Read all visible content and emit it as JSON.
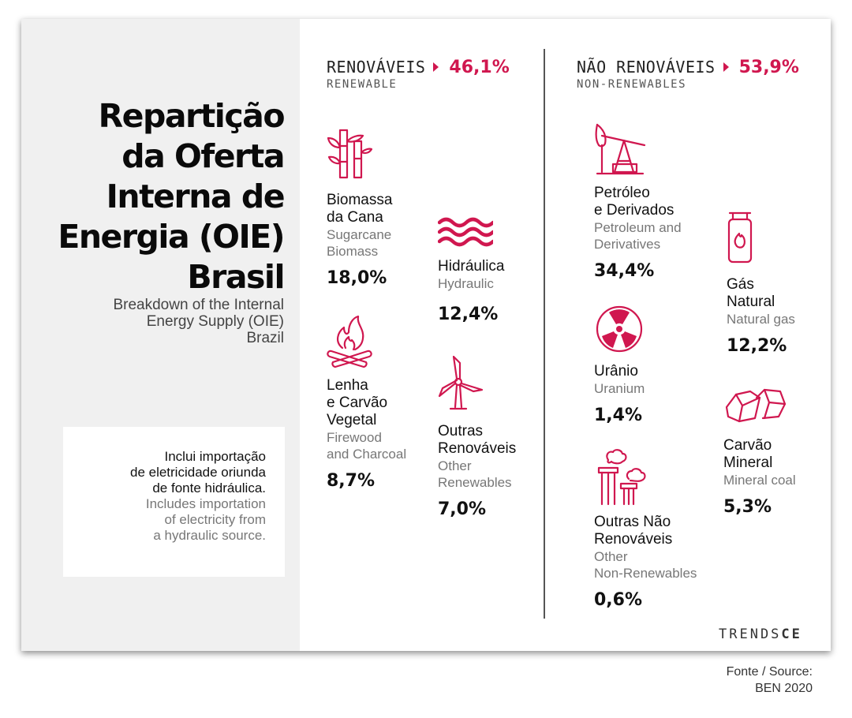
{
  "title": {
    "lines": [
      "Repartição",
      "da Oferta",
      "Interna de",
      "Energia (OIE)",
      "Brasil"
    ],
    "subtitle_lines": [
      "Breakdown of the Internal",
      "Energy Supply (OIE)",
      "Brazil"
    ]
  },
  "note": {
    "pt_lines": [
      "Inclui importação",
      "de eletricidade oriunda",
      "de fonte hidráulica."
    ],
    "en_lines": [
      "Includes importation",
      "of electricity from",
      "a hydraulic source."
    ]
  },
  "renewable": {
    "label_pt": "RENOVÁVEIS",
    "label_en": "RENEWABLE",
    "percent": "46,1%",
    "items": [
      {
        "icon": "sugarcane-icon",
        "pt": "Biomassa\nda Cana",
        "en": "Sugarcane\nBiomass",
        "value": "18,0%"
      },
      {
        "icon": "water-waves-icon",
        "pt": "Hidráulica",
        "en": "Hydraulic",
        "value": "12,4%"
      },
      {
        "icon": "campfire-icon",
        "pt": "Lenha\ne Carvão\nVegetal",
        "en": "Firewood\nand Charcoal",
        "value": "8,7%"
      },
      {
        "icon": "wind-turbine-icon",
        "pt": "Outras\nRenováveis",
        "en": "Other\nRenewables",
        "value": "7,0%"
      }
    ]
  },
  "nonrenewable": {
    "label_pt": "NÃO RENOVÁVEIS",
    "label_en": "NON-RENEWABLES",
    "percent": "53,9%",
    "items": [
      {
        "icon": "oil-pump-icon",
        "pt": "Petróleo\ne Derivados",
        "en": "Petroleum and\nDerivatives",
        "value": "34,4%"
      },
      {
        "icon": "gas-cylinder-icon",
        "pt": "Gás\nNatural",
        "en": "Natural gas",
        "value": "12,2%"
      },
      {
        "icon": "radiation-icon",
        "pt": "Urânio",
        "en": "Uranium",
        "value": "1,4%"
      },
      {
        "icon": "coal-icon",
        "pt": "Carvão\nMineral",
        "en": "Mineral coal",
        "value": "5,3%"
      },
      {
        "icon": "factory-chimneys-icon",
        "pt": "Outras Não\nRenováveis",
        "en": "Other\nNon-Renewables",
        "value": "0,6%"
      }
    ]
  },
  "brand": {
    "light": "TRENDS",
    "bold": "CE"
  },
  "source_lines": [
    "Fonte / Source:",
    "BEN 2020"
  ],
  "colors": {
    "accent": "#d0174f",
    "panel": "#f0f0f0"
  }
}
